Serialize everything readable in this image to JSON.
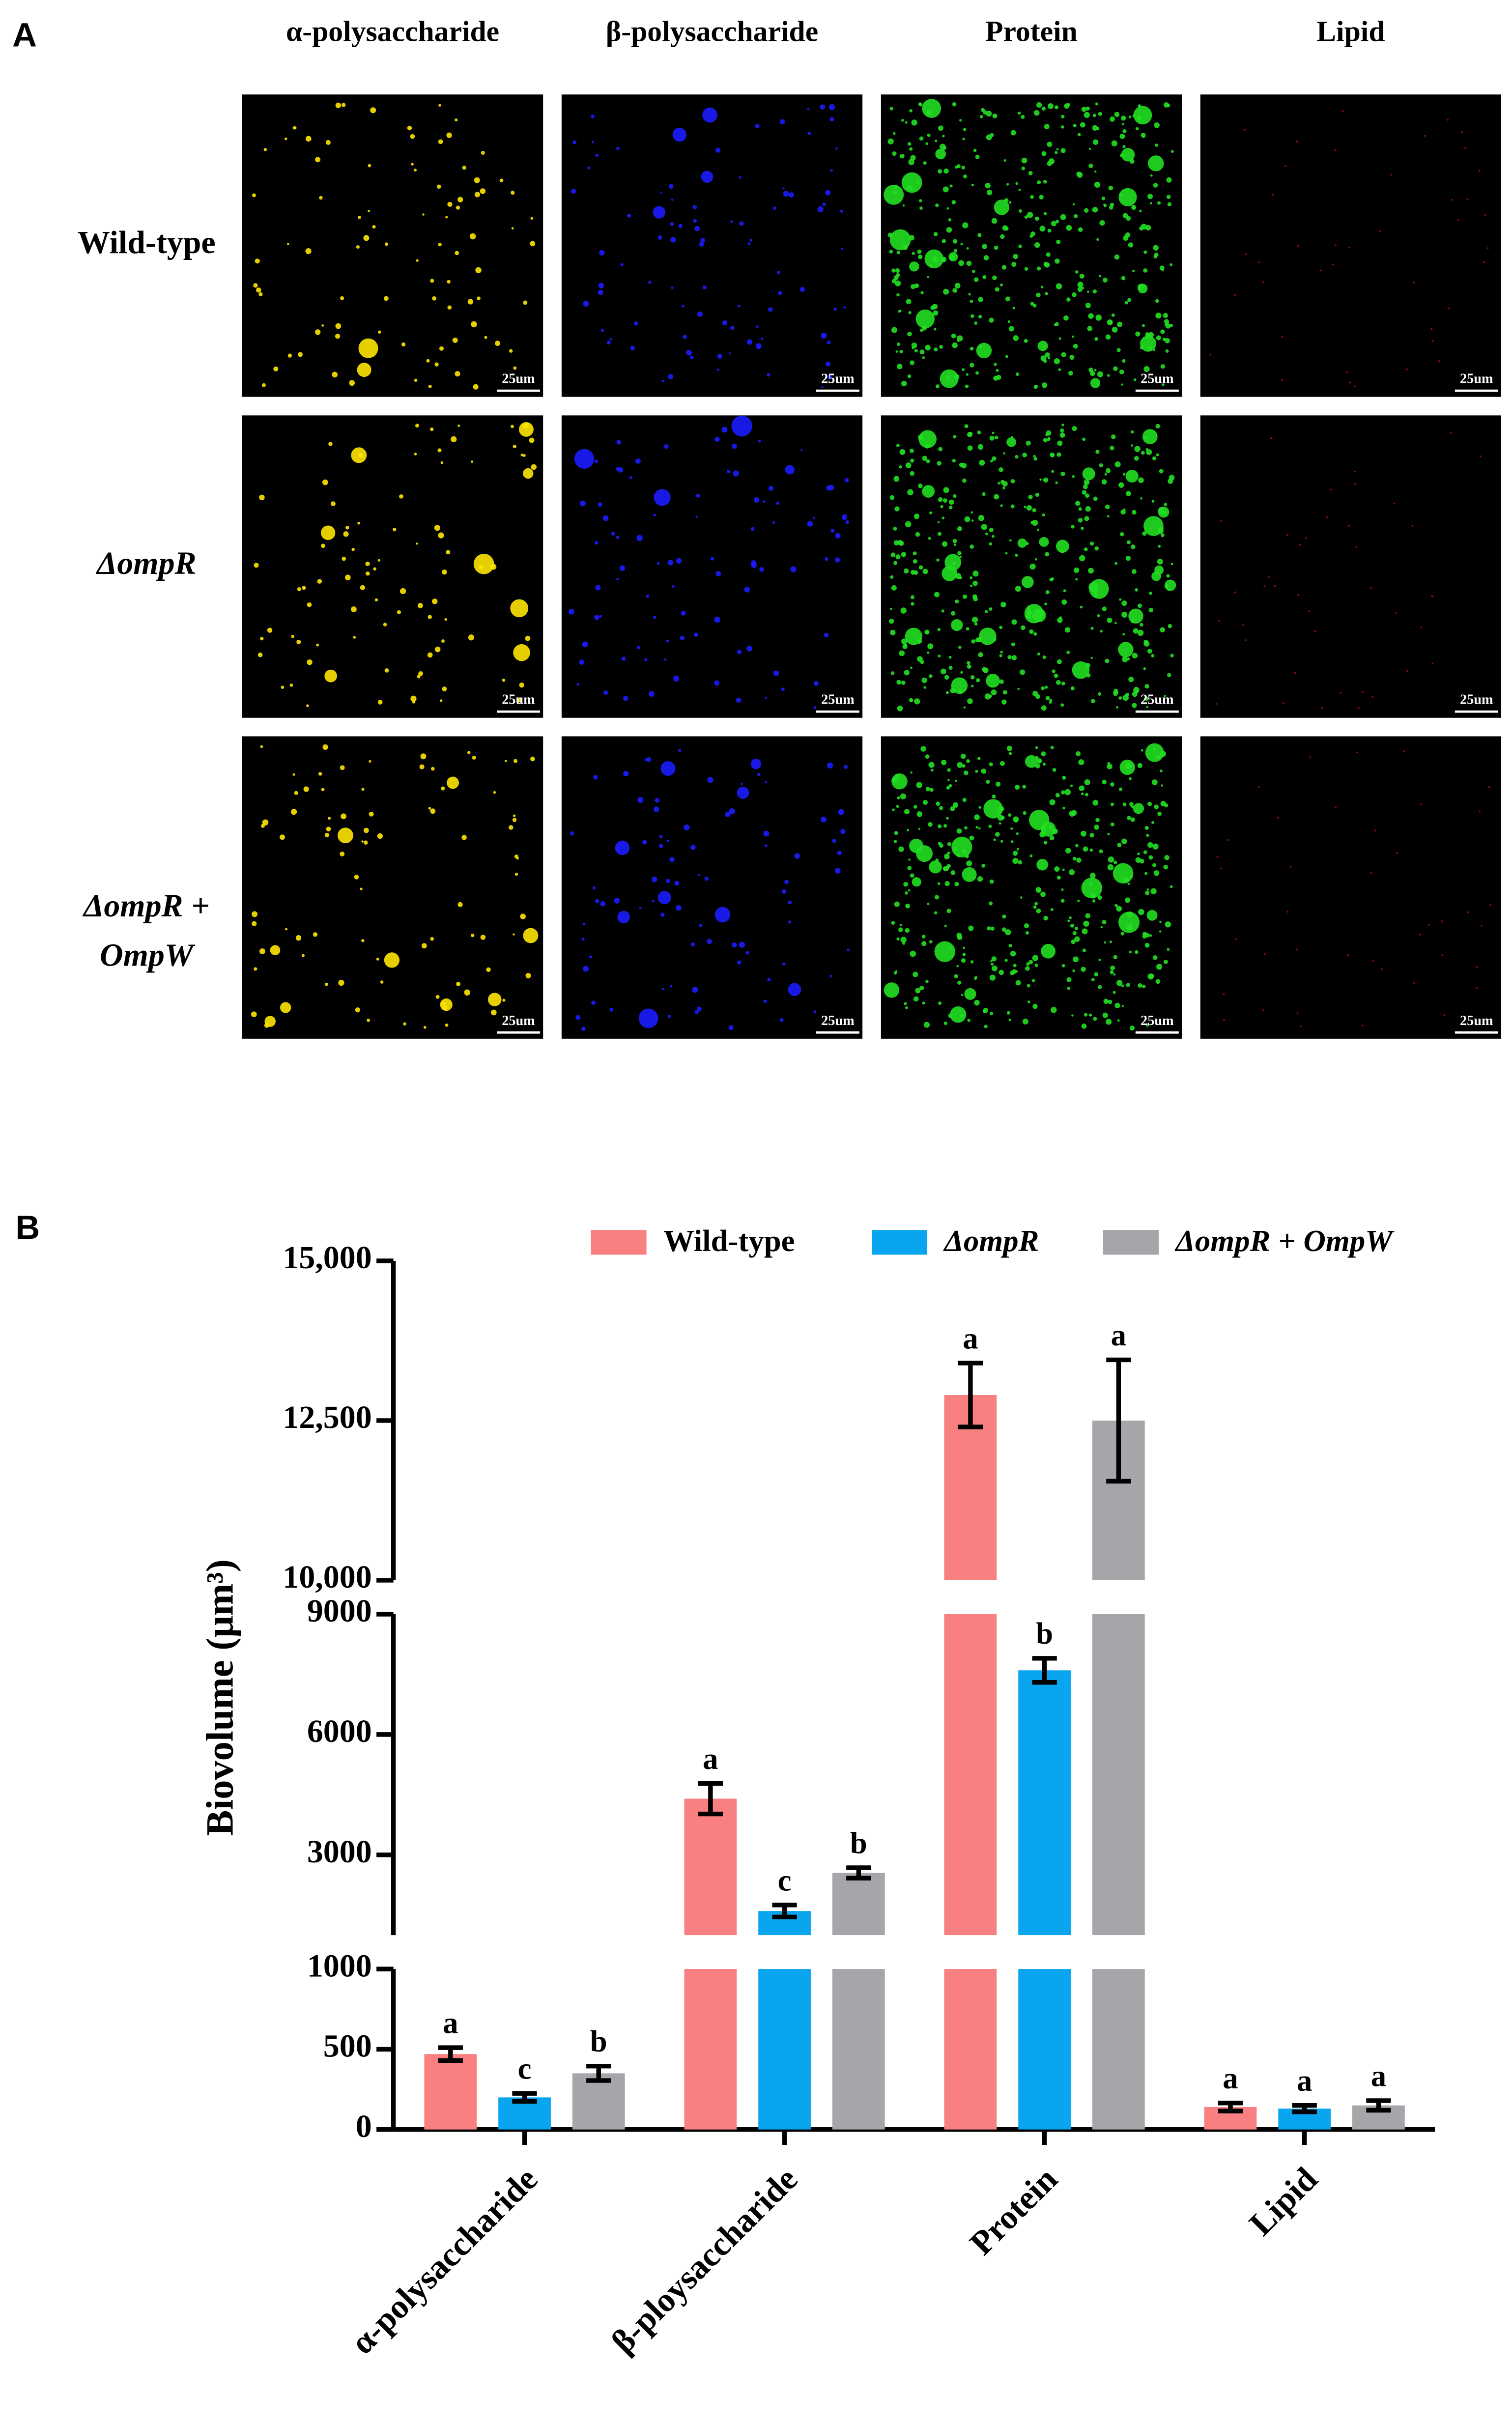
{
  "panel_a": {
    "label": "A",
    "columns": [
      "α-polysaccharide",
      "β-polysaccharide",
      "Protein",
      "Lipid"
    ],
    "rows": [
      [
        "Wild-type"
      ],
      [
        "ΔompR"
      ],
      [
        "ΔompR +",
        "OmpW"
      ]
    ],
    "scale_bar": "25um"
  },
  "chart_data": {
    "type": "bar",
    "panel_label": "B",
    "ylabel": "Biovolume (μm³)",
    "categories": [
      "α-polysaccharide",
      "β-ploysaccharide",
      "Protein",
      "Lipid"
    ],
    "series": [
      {
        "name": "Wild-type",
        "color": "#f98080",
        "values": [
          470,
          4400,
          12900,
          140
        ],
        "errors": [
          40,
          380,
          500,
          25
        ],
        "letters": [
          "a",
          "a",
          "a",
          "a"
        ]
      },
      {
        "name": "ΔompR",
        "color": "#0aa5ef",
        "values": [
          200,
          1600,
          7600,
          130
        ],
        "errors": [
          25,
          150,
          300,
          20
        ],
        "letters": [
          "c",
          "c",
          "b",
          "a"
        ]
      },
      {
        "name": "ΔompR + OmpW",
        "color": "#a6a6aa",
        "values": [
          350,
          2550,
          12500,
          150
        ],
        "errors": [
          45,
          130,
          950,
          30
        ],
        "letters": [
          "b",
          "b",
          "a",
          "a"
        ]
      }
    ],
    "y_segments": [
      {
        "ylim": [
          0,
          1000
        ],
        "yticks": [
          0,
          500,
          1000
        ]
      },
      {
        "ylim": [
          1000,
          9000
        ],
        "yticks": [
          3000,
          6000,
          9000
        ]
      },
      {
        "ylim": [
          10000,
          15000
        ],
        "yticks": [
          {
            "value": 10000,
            "label": "10,000"
          },
          {
            "value": 12500,
            "label": "12,500"
          },
          {
            "value": 15000,
            "label": "15,000"
          }
        ]
      }
    ],
    "legend": "top"
  }
}
